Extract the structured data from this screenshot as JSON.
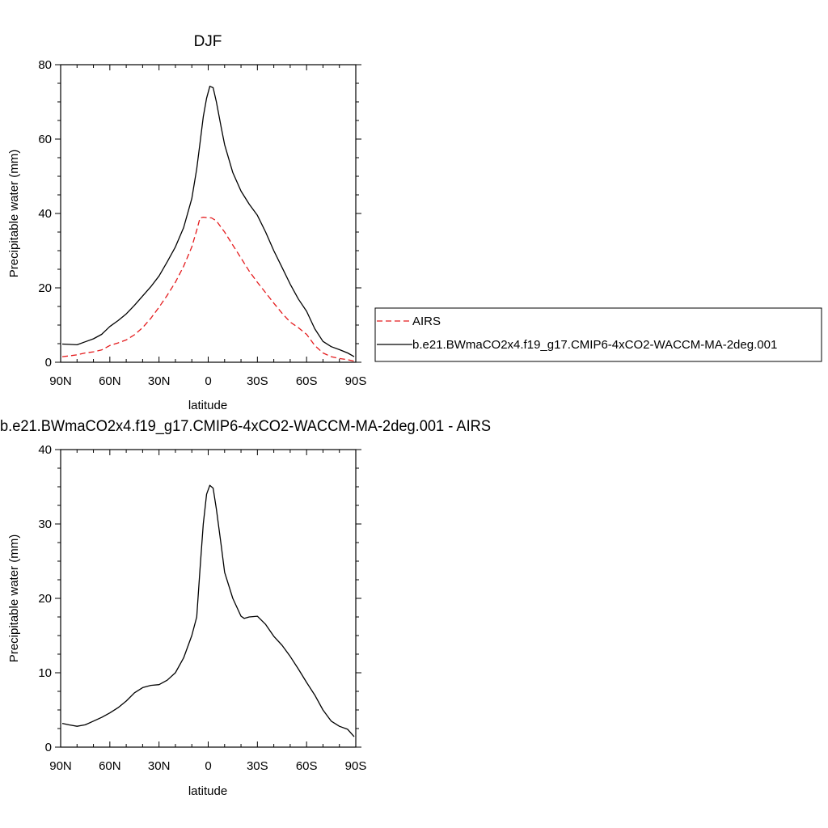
{
  "figure": {
    "legend": {
      "entries": [
        {
          "label": "AIRS",
          "color": "#e41a1c",
          "dash": "dashed"
        },
        {
          "label": "b.e21.BWmaCO2x4.f19_g17.CMIP6-4xCO2-WACCM-MA-2deg.001",
          "color": "#000000",
          "dash": "solid"
        }
      ]
    }
  },
  "chart_data": [
    {
      "type": "line",
      "title": "DJF",
      "xlabel": "latitude",
      "ylabel": "Precipitable water (mm)",
      "xlim": [
        90,
        -90
      ],
      "ylim": [
        0,
        80
      ],
      "xtick_values": [
        90,
        60,
        30,
        0,
        -30,
        -60,
        -90
      ],
      "xtick_labels": [
        "90N",
        "60N",
        "30N",
        "0",
        "30S",
        "60S",
        "90S"
      ],
      "ytick_values": [
        0,
        20,
        40,
        60,
        80
      ],
      "ytick_labels": [
        "0",
        "20",
        "40",
        "60",
        "80"
      ],
      "grid": false,
      "legend_position": "right",
      "series": [
        {
          "name": "AIRS",
          "color": "#e41a1c",
          "dash": "dashed",
          "x": [
            89,
            85,
            80,
            75,
            70,
            65,
            60,
            55,
            50,
            45,
            40,
            35,
            30,
            25,
            20,
            15,
            10,
            7,
            5,
            3,
            1,
            -2,
            -5,
            -10,
            -15,
            -20,
            -25,
            -30,
            -35,
            -40,
            -45,
            -50,
            -55,
            -60,
            -65,
            -70,
            -75,
            -80,
            -85,
            -89
          ],
          "y": [
            1.5,
            1.7,
            2.0,
            2.5,
            2.8,
            3.3,
            4.5,
            5.2,
            6.0,
            7.4,
            9.3,
            11.8,
            14.8,
            18.0,
            21.5,
            25.8,
            31.0,
            35.5,
            38.8,
            39.0,
            38.9,
            38.8,
            38.0,
            35.0,
            31.5,
            28.0,
            24.5,
            21.5,
            18.7,
            15.9,
            13.2,
            10.8,
            9.3,
            7.5,
            4.5,
            2.5,
            1.5,
            1.0,
            0.7,
            0.3
          ]
        },
        {
          "name": "b.e21.BWmaCO2x4.f19_g17.CMIP6-4xCO2-WACCM-MA-2deg.001",
          "color": "#000000",
          "dash": "solid",
          "x": [
            89,
            85,
            80,
            75,
            70,
            65,
            60,
            55,
            50,
            45,
            40,
            35,
            30,
            25,
            20,
            15,
            10,
            7,
            5,
            3,
            1,
            -1,
            -3,
            -5,
            -8,
            -10,
            -15,
            -20,
            -25,
            -30,
            -35,
            -40,
            -45,
            -50,
            -55,
            -60,
            -65,
            -70,
            -75,
            -80,
            -85,
            -89
          ],
          "y": [
            4.9,
            4.8,
            4.7,
            5.5,
            6.3,
            7.5,
            9.6,
            11.2,
            13.0,
            15.3,
            17.8,
            20.3,
            23.2,
            27.0,
            31.0,
            36.2,
            44.0,
            52.0,
            59.0,
            66.0,
            71.0,
            74.2,
            73.8,
            70.0,
            63.0,
            58.5,
            51.0,
            46.0,
            42.5,
            39.5,
            35.0,
            30.0,
            25.5,
            21.0,
            17.0,
            13.7,
            9.0,
            5.6,
            4.2,
            3.4,
            2.5,
            1.5
          ]
        }
      ]
    },
    {
      "type": "line",
      "title": "b.e21.BWmaCO2x4.f19_g17.CMIP6-4xCO2-WACCM-MA-2deg.001 - AIRS",
      "xlabel": "latitude",
      "ylabel": "Precipitable water (mm)",
      "xlim": [
        90,
        -90
      ],
      "ylim": [
        0,
        40
      ],
      "xtick_values": [
        90,
        60,
        30,
        0,
        -30,
        -60,
        -90
      ],
      "xtick_labels": [
        "90N",
        "60N",
        "30N",
        "0",
        "30S",
        "60S",
        "90S"
      ],
      "ytick_values": [
        0,
        10,
        20,
        30,
        40
      ],
      "ytick_labels": [
        "0",
        "10",
        "20",
        "30",
        "40"
      ],
      "grid": false,
      "series": [
        {
          "name": "",
          "color": "#000000",
          "dash": "solid",
          "x": [
            89,
            85,
            80,
            75,
            70,
            65,
            60,
            55,
            50,
            45,
            40,
            35,
            30,
            25,
            20,
            15,
            10,
            7,
            5,
            3,
            1,
            -1,
            -3,
            -5,
            -8,
            -10,
            -15,
            -20,
            -22,
            -25,
            -30,
            -35,
            -40,
            -45,
            -50,
            -55,
            -60,
            -65,
            -70,
            -75,
            -80,
            -85,
            -89
          ],
          "y": [
            3.2,
            3.0,
            2.8,
            3.0,
            3.5,
            4.0,
            4.6,
            5.3,
            6.2,
            7.3,
            8.0,
            8.3,
            8.4,
            9.0,
            10.0,
            12.0,
            15.0,
            17.5,
            24.0,
            30.0,
            34.0,
            35.2,
            34.8,
            32.0,
            27.0,
            23.5,
            20.0,
            17.6,
            17.3,
            17.5,
            17.6,
            16.5,
            14.9,
            13.7,
            12.2,
            10.5,
            8.7,
            7.0,
            5.0,
            3.5,
            2.8,
            2.4,
            1.4
          ]
        }
      ]
    }
  ]
}
